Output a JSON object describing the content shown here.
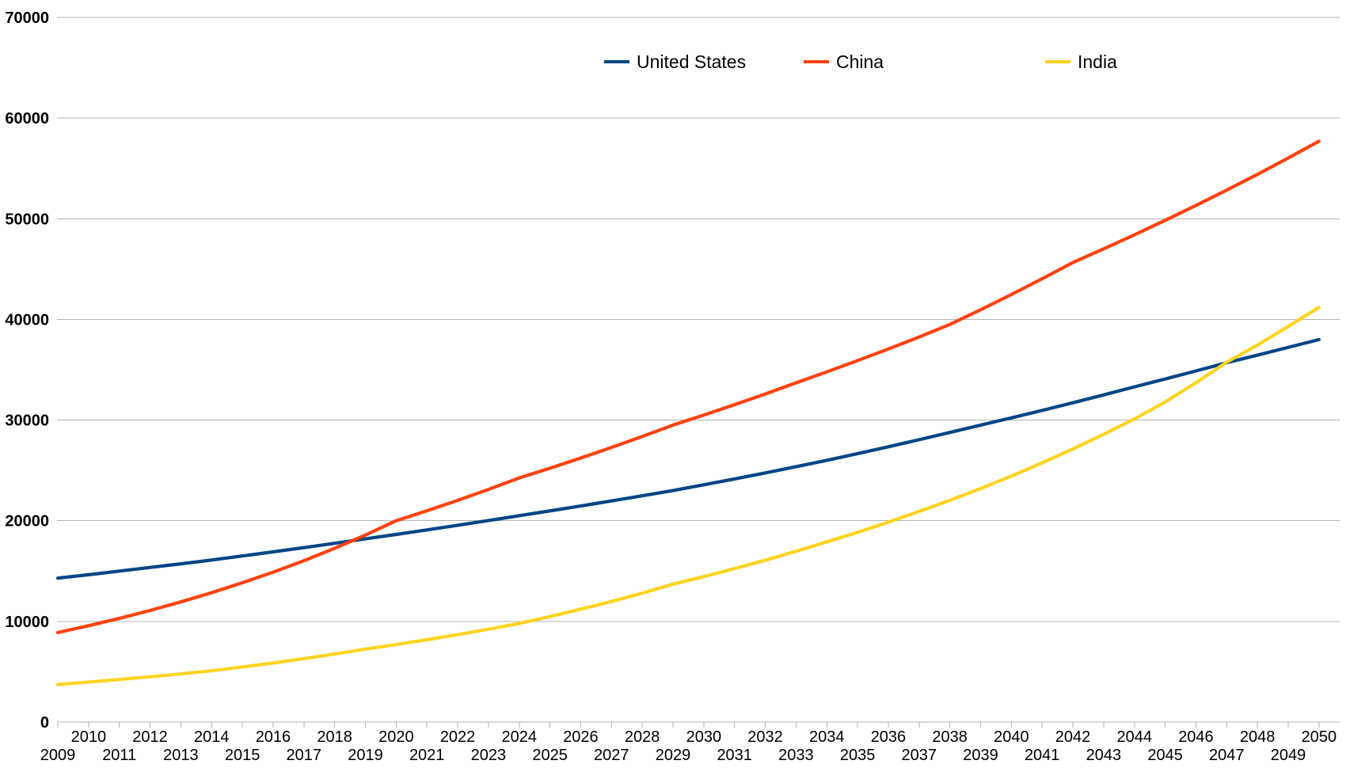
{
  "chart_data": {
    "type": "line",
    "title": "",
    "xlabel": "",
    "ylabel": "",
    "ylim": [
      0,
      70000
    ],
    "y_ticks": [
      0,
      10000,
      20000,
      30000,
      40000,
      50000,
      60000,
      70000
    ],
    "grid": "horizontal",
    "grid_color": "#b3b3b3",
    "text_color": "#000000",
    "legend_position": "top-center",
    "x_tick_label_rows": 2,
    "x": [
      2009,
      2010,
      2011,
      2012,
      2013,
      2014,
      2015,
      2016,
      2017,
      2018,
      2019,
      2020,
      2021,
      2022,
      2023,
      2024,
      2025,
      2026,
      2027,
      2028,
      2029,
      2030,
      2031,
      2032,
      2033,
      2034,
      2035,
      2036,
      2037,
      2038,
      2039,
      2040,
      2041,
      2042,
      2043,
      2044,
      2045,
      2046,
      2047,
      2048,
      2049,
      2050
    ],
    "series": [
      {
        "name": "United States",
        "color": "#004586",
        "values": [
          14300,
          14640,
          15000,
          15360,
          15720,
          16100,
          16500,
          16910,
          17330,
          17760,
          18200,
          18640,
          19090,
          19550,
          20020,
          20500,
          20980,
          21470,
          21970,
          22480,
          23000,
          23570,
          24150,
          24750,
          25370,
          26000,
          26670,
          27350,
          28050,
          28770,
          29500,
          30220,
          30960,
          31720,
          32500,
          33300,
          34080,
          34880,
          35700,
          36450,
          37220,
          38000
        ]
      },
      {
        "name": "China",
        "color": "#ff420e",
        "values": [
          8890,
          9570,
          10300,
          11090,
          11940,
          12850,
          13840,
          14890,
          16030,
          17260,
          18580,
          20000,
          20990,
          22020,
          23110,
          24250,
          25220,
          26230,
          27280,
          28370,
          29500,
          30500,
          31530,
          32590,
          33700,
          34790,
          35910,
          37060,
          38250,
          39500,
          40960,
          42470,
          44040,
          45650,
          47010,
          48400,
          49840,
          51320,
          52840,
          54410,
          56030,
          57700
        ]
      },
      {
        "name": "India",
        "color": "#ffd320",
        "values": [
          3730,
          3970,
          4230,
          4500,
          4790,
          5100,
          5470,
          5870,
          6300,
          6760,
          7250,
          7700,
          8180,
          8690,
          9230,
          9800,
          10480,
          11210,
          11980,
          12810,
          13700,
          14450,
          15250,
          16080,
          16970,
          17900,
          18850,
          19860,
          20920,
          22030,
          23200,
          24440,
          25750,
          27130,
          28580,
          30110,
          31800,
          33700,
          35750,
          37450,
          39300,
          41200
        ]
      }
    ]
  }
}
